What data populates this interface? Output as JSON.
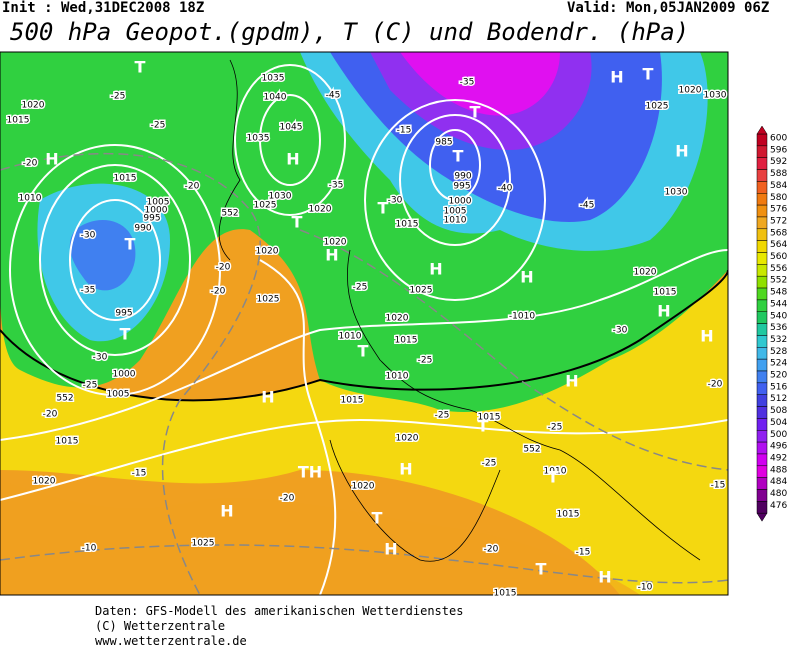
{
  "header": {
    "init": "Init : Wed,31DEC2008 18Z",
    "valid": "Valid: Mon,05JAN2009 06Z",
    "title": "500 hPa Geopot.(gpdm), T (C) und Bodendr. (hPa)"
  },
  "colorbar": {
    "ticks": [
      600,
      596,
      592,
      588,
      584,
      580,
      576,
      572,
      568,
      564,
      560,
      556,
      552,
      548,
      544,
      540,
      536,
      532,
      528,
      524,
      520,
      516,
      512,
      508,
      504,
      500,
      496,
      492,
      488,
      484,
      480,
      476
    ],
    "colors": [
      "#c00020",
      "#d01830",
      "#e02040",
      "#e84040",
      "#f06020",
      "#f07a10",
      "#f09010",
      "#f0a820",
      "#f0c010",
      "#f0d800",
      "#e8e800",
      "#c8e800",
      "#90e000",
      "#50d820",
      "#30d040",
      "#20c860",
      "#20c8a0",
      "#30c8d0",
      "#40b8e8",
      "#40a0f0",
      "#4080f0",
      "#4060f0",
      "#4040e0",
      "#5030e0",
      "#7020f0",
      "#9020f0",
      "#b010f0",
      "#d000f0",
      "#e000e0",
      "#b000c0",
      "#800090",
      "#500060"
    ]
  },
  "labels": [
    "T",
    "H",
    "T",
    "1020",
    "1015",
    "-25",
    "-25",
    "1035",
    "1040",
    "1045",
    "1035",
    "H",
    "H",
    "-20",
    "H",
    "985",
    "T",
    "T",
    "-35",
    "-15",
    "-45",
    "990",
    "995",
    "1000",
    "1005",
    "1010",
    "-40",
    "-45",
    "1030",
    "1025",
    "1020",
    "1030",
    "1010",
    "1015",
    "-20",
    "1005",
    "1000",
    "995",
    "990",
    "T",
    "-30",
    "-35",
    "995",
    "T",
    "-30",
    "1000",
    "-25",
    "1005",
    "-20",
    "1015",
    "1025",
    "1020",
    "-20",
    "-20",
    "T",
    "T",
    "-30",
    "1020",
    "1025",
    "1030",
    "-35",
    "1015",
    "H",
    "1020",
    "H",
    "1025",
    "-25",
    "1020",
    "1010",
    "1015",
    "T",
    "-25",
    "1010",
    "H",
    "1020",
    "1015",
    "H",
    "-30",
    "H",
    "-1010",
    "H",
    "H",
    "1015",
    "-25",
    "1015",
    "T",
    "-25",
    "1020",
    "TH",
    "H",
    "-25",
    "1010",
    "T",
    "1020",
    "-15",
    "-20",
    "1020",
    "T",
    "H",
    "1015",
    "-10",
    "1025",
    "H",
    "-20",
    "-15",
    "T",
    "H",
    "-10",
    "1015",
    "-20",
    "-15",
    "552",
    "552",
    "552"
  ],
  "footer": [
    "Daten: GFS-Modell des amerikanischen Wetterdienstes",
    "(C) Wetterzentrale",
    "www.wetterzentrale.de"
  ]
}
